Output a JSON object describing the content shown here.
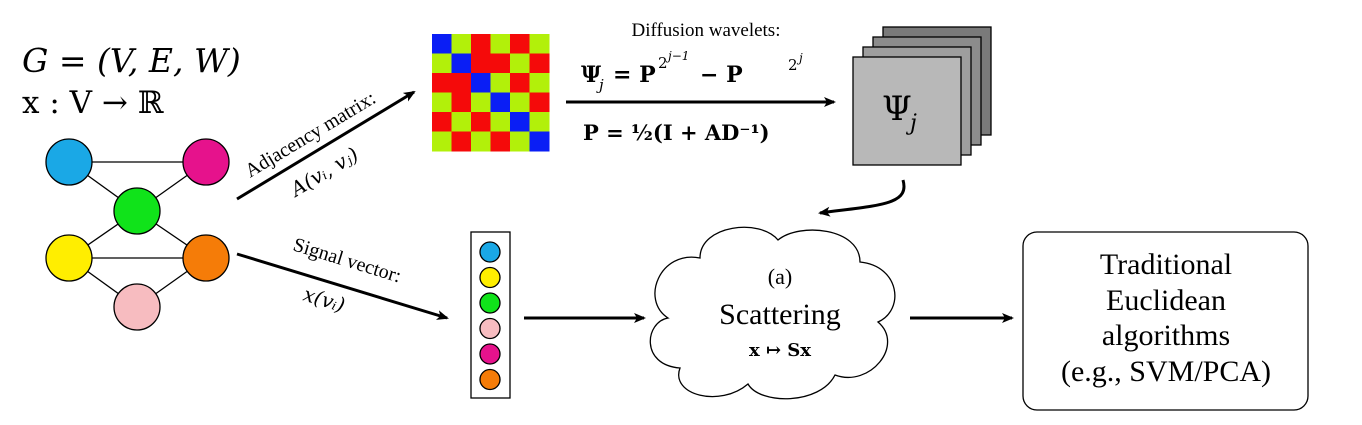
{
  "graph": {
    "definition": "G = (V, E, W)",
    "signal_map": "x : V → ℝ",
    "nodes": [
      {
        "id": "v1",
        "color": "#1aa8e6"
      },
      {
        "id": "v2",
        "color": "#e6128c"
      },
      {
        "id": "v3",
        "color": "#10e31a"
      },
      {
        "id": "v4",
        "color": "#ffee00"
      },
      {
        "id": "v5",
        "color": "#f57c08"
      },
      {
        "id": "v6",
        "color": "#f7bcc0"
      }
    ],
    "edges": [
      [
        "v1",
        "v2"
      ],
      [
        "v1",
        "v3"
      ],
      [
        "v2",
        "v3"
      ],
      [
        "v3",
        "v4"
      ],
      [
        "v3",
        "v5"
      ],
      [
        "v4",
        "v5"
      ],
      [
        "v4",
        "v6"
      ],
      [
        "v5",
        "v6"
      ]
    ]
  },
  "arrows": {
    "adjacency_label": "Adjacency matrix:",
    "adjacency_formula": "A(vᵢ, vⱼ)",
    "signal_label": "Signal vector:",
    "signal_formula": "x(vᵢ)"
  },
  "matrix": {
    "colors": {
      "green": "#b2f00a",
      "blue": "#0a1ef5",
      "red": "#f50a0a"
    },
    "cells": [
      [
        "blue",
        "green",
        "red",
        "green",
        "red",
        "green"
      ],
      [
        "green",
        "blue",
        "red",
        "red",
        "green",
        "red"
      ],
      [
        "red",
        "red",
        "blue",
        "green",
        "red",
        "green"
      ],
      [
        "green",
        "red",
        "green",
        "blue",
        "green",
        "red"
      ],
      [
        "red",
        "green",
        "red",
        "green",
        "blue",
        "green"
      ],
      [
        "green",
        "red",
        "green",
        "red",
        "green",
        "blue"
      ]
    ]
  },
  "wavelets": {
    "title": "Diffusion wavelets:",
    "psi_formula_lhs": "Ψ",
    "psi_sub": "j",
    "psi_formula_rhs": "= P",
    "psi_exp1": "2",
    "psi_exp1_sup": "j−1",
    "psi_minus": "− P",
    "psi_exp2": "2",
    "psi_exp2_sup": "j",
    "p_formula": "P = ½(I + AD⁻¹)",
    "stack_label": "Ψ",
    "stack_sub": "j"
  },
  "signal_vector": {
    "colors": [
      "#1aa8e6",
      "#ffee00",
      "#10e31a",
      "#f7bcc0",
      "#e6128c",
      "#f57c08"
    ]
  },
  "scattering": {
    "tag": "(a)",
    "title": "Scattering",
    "formula": "x ↦ Sx"
  },
  "output_box": {
    "lines": [
      "Traditional",
      "Euclidean",
      "algorithms",
      "(e.g., SVM/PCA)"
    ]
  }
}
